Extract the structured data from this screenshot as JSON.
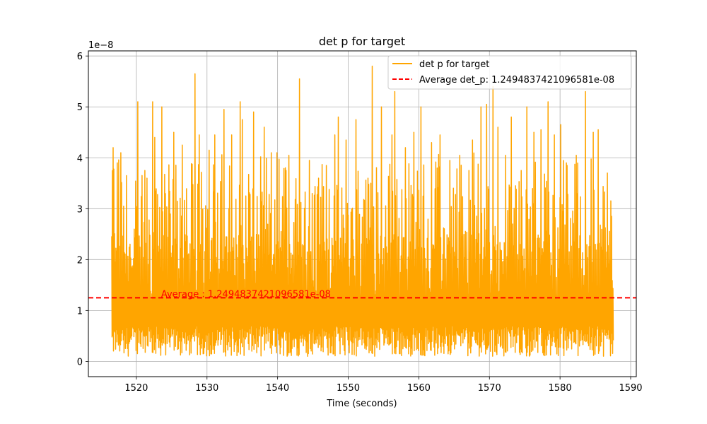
{
  "chart_data": {
    "type": "line",
    "title": "det p for target",
    "xlabel": "Time (seconds)",
    "ylabel": "",
    "offset_label": "1e−8",
    "xlim": [
      1513.2,
      1590.8
    ],
    "ylim": [
      -0.3,
      6.1
    ],
    "x_ticks": [
      1520,
      1530,
      1540,
      1550,
      1560,
      1570,
      1580,
      1590
    ],
    "y_ticks": [
      0,
      1,
      2,
      3,
      4,
      5,
      6
    ],
    "x_tick_labels": [
      "1520",
      "1530",
      "1540",
      "1550",
      "1560",
      "1570",
      "1580",
      "1590"
    ],
    "y_tick_labels": [
      "0",
      "1",
      "2",
      "3",
      "4",
      "5",
      "6"
    ],
    "grid": true,
    "legend_position": "top-right",
    "series": [
      {
        "name": "det p for target",
        "color": "#ffa500",
        "style": "solid",
        "x_range": [
          1516.5,
          1587.5
        ],
        "y_min_scaled": 0.1,
        "y_max_scaled": 5.8,
        "peaks": [
          [
            1516.7,
            4.2
          ],
          [
            1517.3,
            3.9
          ],
          [
            1517.8,
            4.1
          ],
          [
            1518.6,
            3.65
          ],
          [
            1520.2,
            5.1
          ],
          [
            1521.5,
            3.6
          ],
          [
            1522.3,
            5.1
          ],
          [
            1522.6,
            4.4
          ],
          [
            1523.6,
            5.0
          ],
          [
            1525.3,
            4.5
          ],
          [
            1526.5,
            4.25
          ],
          [
            1528.3,
            5.65
          ],
          [
            1528.9,
            4.45
          ],
          [
            1530.3,
            4.15
          ],
          [
            1531.1,
            4.45
          ],
          [
            1532.4,
            4.95
          ],
          [
            1533.5,
            4.45
          ],
          [
            1534.7,
            5.1
          ],
          [
            1535.0,
            4.75
          ],
          [
            1536.6,
            4.9
          ],
          [
            1538.1,
            4.6
          ],
          [
            1539.1,
            4.1
          ],
          [
            1539.9,
            4.1
          ],
          [
            1541.6,
            4.05
          ],
          [
            1543.1,
            5.55
          ],
          [
            1544.5,
            3.95
          ],
          [
            1545.8,
            3.6
          ],
          [
            1546.9,
            3.85
          ],
          [
            1548.1,
            4.45
          ],
          [
            1548.6,
            4.8
          ],
          [
            1549.7,
            4.35
          ],
          [
            1551.1,
            4.75
          ],
          [
            1552.8,
            3.6
          ],
          [
            1553.4,
            5.8
          ],
          [
            1554.7,
            5.0
          ],
          [
            1556.2,
            4.45
          ],
          [
            1556.6,
            5.3
          ],
          [
            1558.1,
            4.2
          ],
          [
            1559.3,
            4.5
          ],
          [
            1560.3,
            5.0
          ],
          [
            1561.8,
            4.3
          ],
          [
            1563.0,
            4.45
          ],
          [
            1564.4,
            3.95
          ],
          [
            1565.8,
            4.05
          ],
          [
            1567.1,
            3.75
          ],
          [
            1567.6,
            4.35
          ],
          [
            1568.8,
            5.0
          ],
          [
            1569.6,
            5.05
          ],
          [
            1570.5,
            5.4
          ],
          [
            1571.2,
            4.6
          ],
          [
            1572.3,
            4.05
          ],
          [
            1573.1,
            4.8
          ],
          [
            1574.5,
            3.75
          ],
          [
            1575.3,
            5.0
          ],
          [
            1576.3,
            4.5
          ],
          [
            1577.3,
            4.55
          ],
          [
            1578.3,
            5.1
          ],
          [
            1579.2,
            4.45
          ],
          [
            1580.1,
            4.65
          ],
          [
            1581.0,
            3.85
          ],
          [
            1582.3,
            4.05
          ],
          [
            1583.6,
            5.3
          ],
          [
            1584.7,
            4.5
          ],
          [
            1585.4,
            4.55
          ],
          [
            1586.7,
            3.7
          ],
          [
            1587.3,
            2.85
          ]
        ]
      },
      {
        "name": "Average det_p: 1.2494837421096581e-08",
        "color": "#ff0000",
        "style": "dashed",
        "y_scaled": 1.249483742109658
      }
    ],
    "annotation": {
      "text": "Average : 1.2494837421096581e-08",
      "x": 1523.5,
      "y_scaled": 1.249483742109658,
      "color": "#ff0000"
    }
  }
}
